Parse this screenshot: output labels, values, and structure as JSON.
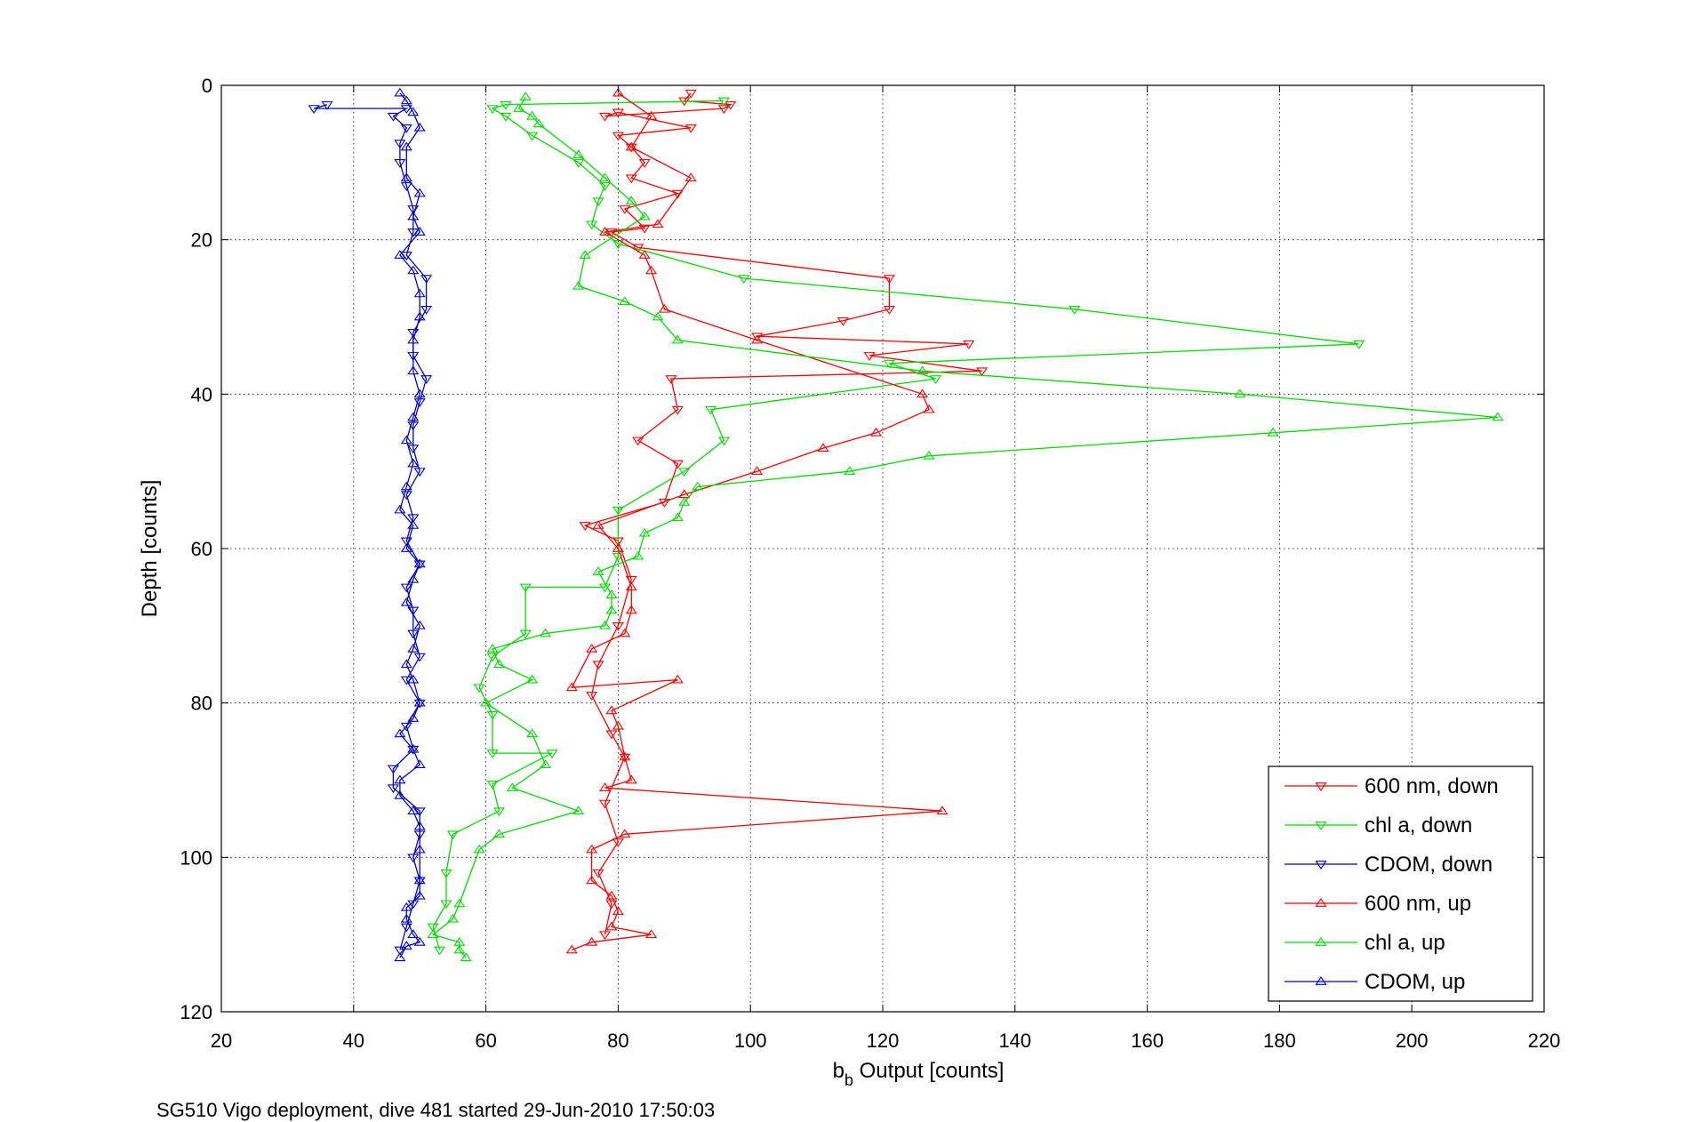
{
  "chart_data": {
    "type": "line",
    "xlabel": "b",
    "xlabel_subscript": "b",
    "xlabel_rest": " Output [counts]",
    "ylabel": "Depth [counts]",
    "caption": "SG510 Vigo deployment, dive 481 started 29-Jun-2010 17:50:03",
    "xlim": [
      20,
      220
    ],
    "ylim": [
      0,
      120
    ],
    "y_reversed": true,
    "grid": true,
    "legend_position": "bottom-right",
    "x_ticks": [
      20,
      40,
      60,
      80,
      100,
      120,
      140,
      160,
      180,
      200,
      220
    ],
    "y_ticks": [
      0,
      20,
      40,
      60,
      80,
      100,
      120
    ],
    "series": [
      {
        "name": "600 nm, down",
        "color": "#ff0000",
        "marker": "triangle-down",
        "points": [
          [
            91,
            1
          ],
          [
            90,
            2
          ],
          [
            97,
            2.5
          ],
          [
            96,
            3
          ],
          [
            78,
            4
          ],
          [
            80,
            3.5
          ],
          [
            91,
            5.5
          ],
          [
            80,
            6.5
          ],
          [
            82,
            8
          ],
          [
            84,
            10
          ],
          [
            82,
            12
          ],
          [
            89,
            14
          ],
          [
            81,
            16
          ],
          [
            84,
            18.5
          ],
          [
            79,
            19
          ],
          [
            83,
            21
          ],
          [
            121,
            25
          ],
          [
            121,
            29
          ],
          [
            114,
            30.5
          ],
          [
            101,
            32.5
          ],
          [
            133,
            33.5
          ],
          [
            118,
            35
          ],
          [
            135,
            37
          ],
          [
            88,
            38
          ],
          [
            89,
            42
          ],
          [
            83,
            46
          ],
          [
            89,
            49
          ],
          [
            87,
            54
          ],
          [
            75,
            57
          ],
          [
            80,
            59
          ],
          [
            82,
            64
          ],
          [
            80,
            70
          ],
          [
            77,
            75
          ],
          [
            76,
            79
          ],
          [
            79,
            84
          ],
          [
            81,
            87
          ],
          [
            78,
            93
          ],
          [
            80,
            98
          ],
          [
            77,
            102
          ],
          [
            79,
            106
          ],
          [
            78,
            110
          ]
        ]
      },
      {
        "name": "chl a, down",
        "color": "#00dd00",
        "marker": "triangle-down",
        "points": [
          [
            96,
            2
          ],
          [
            63,
            2.5
          ],
          [
            61,
            3
          ],
          [
            63,
            4
          ],
          [
            67,
            6.5
          ],
          [
            74,
            10
          ],
          [
            78,
            13
          ],
          [
            77,
            15
          ],
          [
            76,
            18
          ],
          [
            80,
            20.5
          ],
          [
            99,
            25
          ],
          [
            149,
            29
          ],
          [
            192,
            33.5
          ],
          [
            121,
            36
          ],
          [
            128,
            38
          ],
          [
            94,
            42
          ],
          [
            96,
            46
          ],
          [
            90,
            50
          ],
          [
            80,
            55
          ],
          [
            80,
            61
          ],
          [
            78,
            65
          ],
          [
            66,
            65
          ],
          [
            66,
            71
          ],
          [
            61,
            74
          ],
          [
            59,
            78
          ],
          [
            61,
            81.5
          ],
          [
            61,
            86.5
          ],
          [
            70,
            86.5
          ],
          [
            61,
            90.5
          ],
          [
            62,
            94
          ],
          [
            55,
            97
          ],
          [
            54,
            102
          ],
          [
            54,
            106
          ],
          [
            52,
            109
          ],
          [
            53,
            112
          ]
        ]
      },
      {
        "name": "CDOM, down",
        "color": "#0000cc",
        "marker": "triangle-down",
        "points": [
          [
            36,
            2.5
          ],
          [
            34,
            3
          ],
          [
            48,
            3
          ],
          [
            46,
            4
          ],
          [
            48,
            5.5
          ],
          [
            47,
            7.5
          ],
          [
            47,
            10
          ],
          [
            48,
            13
          ],
          [
            49,
            16
          ],
          [
            49,
            19
          ],
          [
            48,
            22
          ],
          [
            51,
            25
          ],
          [
            51,
            29
          ],
          [
            49,
            32
          ],
          [
            49,
            35
          ],
          [
            51,
            38
          ],
          [
            50,
            41
          ],
          [
            49,
            44
          ],
          [
            49,
            47
          ],
          [
            50,
            50
          ],
          [
            48,
            53
          ],
          [
            49,
            56
          ],
          [
            48,
            59
          ],
          [
            50,
            62
          ],
          [
            48,
            65
          ],
          [
            49,
            68
          ],
          [
            49,
            71
          ],
          [
            50,
            74
          ],
          [
            48,
            77
          ],
          [
            50,
            80
          ],
          [
            48,
            83
          ],
          [
            49,
            86
          ],
          [
            46,
            88.5
          ],
          [
            46,
            91
          ],
          [
            50,
            94
          ],
          [
            50,
            97
          ],
          [
            49,
            100
          ],
          [
            50,
            103
          ],
          [
            49,
            106
          ],
          [
            48,
            109
          ],
          [
            47,
            112
          ]
        ]
      },
      {
        "name": "600 nm, up",
        "color": "#ff0000",
        "marker": "triangle-up",
        "points": [
          [
            73,
            112
          ],
          [
            76,
            111
          ],
          [
            85,
            110
          ],
          [
            79,
            109
          ],
          [
            80,
            107
          ],
          [
            79,
            105
          ],
          [
            76,
            103
          ],
          [
            76,
            99
          ],
          [
            81,
            97
          ],
          [
            129,
            94
          ],
          [
            78,
            91
          ],
          [
            82,
            90
          ],
          [
            81,
            87
          ],
          [
            80,
            83
          ],
          [
            79,
            81
          ],
          [
            89,
            77
          ],
          [
            73,
            78
          ],
          [
            76,
            73
          ],
          [
            81,
            71
          ],
          [
            82,
            68
          ],
          [
            82,
            65
          ],
          [
            80,
            60
          ],
          [
            77,
            57
          ],
          [
            90,
            53
          ],
          [
            101,
            50
          ],
          [
            111,
            47
          ],
          [
            119,
            45
          ],
          [
            127,
            42
          ],
          [
            126,
            40
          ],
          [
            101,
            33
          ],
          [
            87,
            29
          ],
          [
            85,
            24
          ],
          [
            84,
            22
          ],
          [
            78,
            19
          ],
          [
            86,
            18
          ],
          [
            91,
            12
          ],
          [
            82,
            8
          ],
          [
            85,
            4
          ],
          [
            80,
            1
          ]
        ]
      },
      {
        "name": "chl a, up",
        "color": "#00dd00",
        "marker": "triangle-up",
        "points": [
          [
            57,
            113
          ],
          [
            56,
            112
          ],
          [
            56,
            111
          ],
          [
            52,
            110
          ],
          [
            55,
            108
          ],
          [
            56,
            106
          ],
          [
            59,
            99
          ],
          [
            62,
            97
          ],
          [
            74,
            94
          ],
          [
            64,
            91
          ],
          [
            69,
            88
          ],
          [
            67,
            84
          ],
          [
            60,
            80
          ],
          [
            67,
            77
          ],
          [
            62,
            75
          ],
          [
            61,
            73
          ],
          [
            69,
            71
          ],
          [
            78,
            70
          ],
          [
            79,
            68
          ],
          [
            79,
            66
          ],
          [
            77,
            63
          ],
          [
            83,
            61
          ],
          [
            84,
            58
          ],
          [
            89,
            56
          ],
          [
            90,
            54
          ],
          [
            92,
            52
          ],
          [
            115,
            50
          ],
          [
            127,
            48
          ],
          [
            179,
            45
          ],
          [
            213,
            43
          ],
          [
            174,
            40
          ],
          [
            126,
            37
          ],
          [
            89,
            33
          ],
          [
            86,
            30
          ],
          [
            81,
            28
          ],
          [
            74,
            26
          ],
          [
            75,
            22
          ],
          [
            84,
            17
          ],
          [
            82,
            15
          ],
          [
            78,
            12
          ],
          [
            74,
            9
          ],
          [
            68,
            5
          ],
          [
            67,
            4
          ],
          [
            65,
            3
          ],
          [
            66,
            1.5
          ]
        ]
      },
      {
        "name": "CDOM, up",
        "color": "#0000cc",
        "marker": "triangle-up",
        "points": [
          [
            47,
            113
          ],
          [
            48,
            111.5
          ],
          [
            50,
            111
          ],
          [
            49,
            110
          ],
          [
            48,
            108
          ],
          [
            48,
            106.5
          ],
          [
            50,
            105
          ],
          [
            50,
            103
          ],
          [
            50,
            99
          ],
          [
            50,
            96
          ],
          [
            49,
            94
          ],
          [
            47,
            92
          ],
          [
            47,
            90
          ],
          [
            50,
            88
          ],
          [
            49,
            86
          ],
          [
            47,
            84
          ],
          [
            49,
            82
          ],
          [
            50,
            80
          ],
          [
            49,
            77
          ],
          [
            48,
            75
          ],
          [
            49,
            73
          ],
          [
            50,
            70
          ],
          [
            48,
            67
          ],
          [
            49,
            64
          ],
          [
            50,
            62
          ],
          [
            48,
            60
          ],
          [
            49,
            57
          ],
          [
            47,
            55
          ],
          [
            48,
            52
          ],
          [
            49,
            49
          ],
          [
            48,
            46
          ],
          [
            49,
            43
          ],
          [
            50,
            40
          ],
          [
            49,
            37
          ],
          [
            49,
            33
          ],
          [
            50,
            30
          ],
          [
            50,
            27
          ],
          [
            49,
            24
          ],
          [
            47,
            22
          ],
          [
            50,
            19
          ],
          [
            49,
            17
          ],
          [
            50,
            14
          ],
          [
            48,
            12
          ],
          [
            48,
            8
          ],
          [
            50,
            5.5
          ],
          [
            49,
            3.5
          ],
          [
            48,
            2
          ],
          [
            47,
            1
          ]
        ]
      }
    ]
  }
}
